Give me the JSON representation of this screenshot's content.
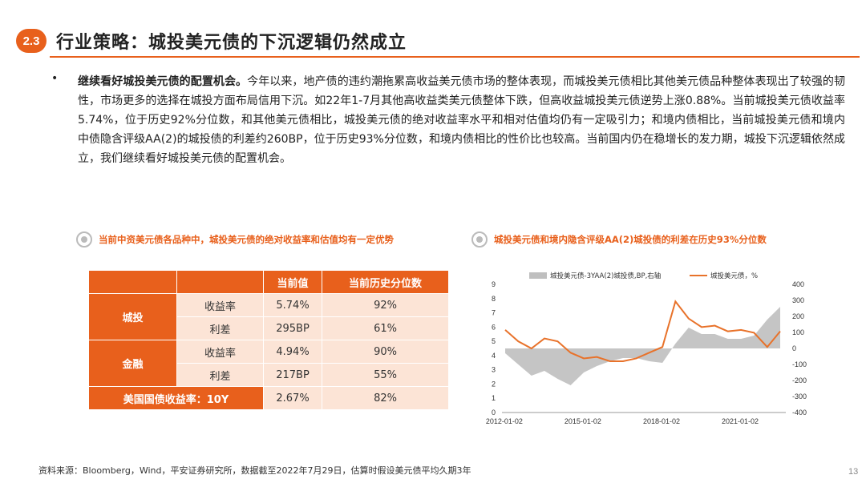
{
  "section": {
    "number": "2.3",
    "title": "行业策略：城投美元债的下沉逻辑仍然成立"
  },
  "body": {
    "lead": "继续看好城投美元债的配置机会。",
    "text": "今年以来，地产债的违约潮拖累高收益美元债市场的整体表现，而城投美元债相比其他美元债品种整体表现出了较强的韧性，市场更多的选择在城投方面布局信用下沉。如22年1-7月其他高收益类美元债整体下跌，但高收益城投美元债逆势上涨0.88%。当前城投美元债收益率5.74%，位于历史92%分位数，和其他美元债相比，城投美元债的绝对收益率水平和相对估值均仍有一定吸引力；和境内债相比，当前城投美元债和境内中债隐含评级AA(2)的城投债的利差约260BP，位于历史93%分位数，和境内债相比的性价比也较高。当前国内仍在稳增长的发力期，城投下沉逻辑依然成立，我们继续看好城投美元债的配置机会。"
  },
  "left_panel": {
    "title": "当前中资美元债各品种中，城投美元债的绝对收益率和估值均有一定优势",
    "table": {
      "headers": [
        "当前值",
        "当前历史分位数"
      ],
      "groups": [
        {
          "name": "城投",
          "rows": [
            {
              "metric": "收益率",
              "value": "5.74%",
              "pct": "92%"
            },
            {
              "metric": "利差",
              "value": "295BP",
              "pct": "61%"
            }
          ]
        },
        {
          "name": "金融",
          "rows": [
            {
              "metric": "收益率",
              "value": "4.94%",
              "pct": "90%"
            },
            {
              "metric": "利差",
              "value": "217BP",
              "pct": "55%"
            }
          ]
        }
      ],
      "last_row": {
        "label": "美国国债收益率：10Y",
        "value": "2.67%",
        "pct": "82%"
      }
    }
  },
  "right_panel": {
    "title": "城投美元债和境内隐含评级AA(2)城投债的利差在历史93%分位数"
  },
  "chart_data": {
    "type": "area",
    "legend": "top",
    "series": [
      {
        "name": "城投美元债-3YAA(2)城投债,BP,右轴",
        "kind": "area",
        "color": "#bfbfbf",
        "axis": "right",
        "x": [
          "2012-01",
          "2012-07",
          "2013-01",
          "2013-07",
          "2014-01",
          "2014-07",
          "2015-01",
          "2015-07",
          "2016-01",
          "2016-07",
          "2017-01",
          "2017-07",
          "2018-01",
          "2018-07",
          "2019-01",
          "2019-07",
          "2020-01",
          "2020-07",
          "2021-01",
          "2021-07",
          "2022-01",
          "2022-07"
        ],
        "values": [
          -30,
          -100,
          -170,
          -140,
          -190,
          -230,
          -150,
          -110,
          -80,
          -60,
          -60,
          -80,
          -90,
          30,
          130,
          90,
          90,
          60,
          60,
          80,
          180,
          260
        ]
      },
      {
        "name": "城投美元债，%",
        "kind": "line",
        "color": "#e8722a",
        "axis": "left",
        "x": [
          "2012-01",
          "2012-07",
          "2013-01",
          "2013-07",
          "2014-01",
          "2014-07",
          "2015-01",
          "2015-07",
          "2016-01",
          "2016-07",
          "2017-01",
          "2017-07",
          "2018-01",
          "2018-07",
          "2019-01",
          "2019-07",
          "2020-01",
          "2020-07",
          "2021-01",
          "2021-07",
          "2022-01",
          "2022-07"
        ],
        "values": [
          5.8,
          5.0,
          4.5,
          5.2,
          5.0,
          4.2,
          3.8,
          3.9,
          3.6,
          3.6,
          3.8,
          4.2,
          4.6,
          7.8,
          6.6,
          6.0,
          6.1,
          5.7,
          5.8,
          5.6,
          4.6,
          5.7
        ]
      }
    ],
    "x_ticks": [
      "2012-01-02",
      "2015-01-02",
      "2018-01-02",
      "2021-01-02"
    ],
    "y_left": {
      "ticks": [
        "9",
        "8",
        "7",
        "6",
        "5",
        "4",
        "3",
        "2",
        "1",
        "0"
      ],
      "lim": [
        0,
        9
      ]
    },
    "y_right": {
      "ticks": [
        "400",
        "300",
        "200",
        "100",
        "0",
        "-100",
        "-200",
        "-300",
        "-400"
      ],
      "lim": [
        -400,
        400
      ]
    }
  },
  "footer": {
    "source": "资料来源：Bloomberg，Wind，平安证券研究所，数据截至2022年7月29日，估算时假设美元债平均久期3年",
    "page": "13"
  }
}
